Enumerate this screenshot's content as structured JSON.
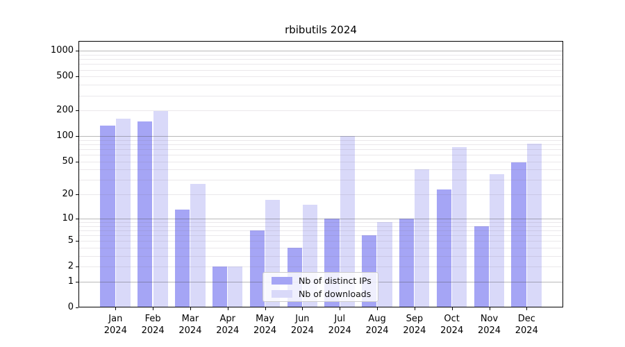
{
  "chart_data": {
    "type": "bar",
    "title": "rbibutils 2024",
    "categories": [
      {
        "month": "Jan",
        "year": "2024"
      },
      {
        "month": "Feb",
        "year": "2024"
      },
      {
        "month": "Mar",
        "year": "2024"
      },
      {
        "month": "Apr",
        "year": "2024"
      },
      {
        "month": "May",
        "year": "2024"
      },
      {
        "month": "Jun",
        "year": "2024"
      },
      {
        "month": "Jul",
        "year": "2024"
      },
      {
        "month": "Aug",
        "year": "2024"
      },
      {
        "month": "Sep",
        "year": "2024"
      },
      {
        "month": "Oct",
        "year": "2024"
      },
      {
        "month": "Nov",
        "year": "2024"
      },
      {
        "month": "Dec",
        "year": "2024"
      }
    ],
    "series": [
      {
        "name": "Nb of distinct IPs",
        "color": "#a5a5f5",
        "values": [
          133,
          150,
          13,
          2,
          7,
          4,
          10,
          6,
          10,
          23,
          8,
          49
        ]
      },
      {
        "name": "Nb of downloads",
        "color": "#d9d9f9",
        "values": [
          160,
          199,
          27,
          2,
          17,
          15,
          100,
          9,
          40,
          74,
          35,
          82
        ]
      }
    ],
    "yscale": "log10(value+1)",
    "ylim": [
      0,
      1300
    ],
    "yticks": [
      1000,
      500,
      200,
      100,
      50,
      20,
      10,
      5,
      2,
      1,
      0
    ],
    "ytick_labels": [
      "1000",
      "500",
      "200",
      "100",
      "50",
      "20",
      "10",
      "5",
      "2",
      "1",
      "0"
    ],
    "grid": {
      "major_at": [
        1,
        10,
        100,
        1000
      ],
      "minor_at": [
        2,
        3,
        4,
        5,
        6,
        7,
        8,
        9,
        20,
        30,
        40,
        50,
        60,
        70,
        80,
        90,
        200,
        300,
        400,
        500,
        600,
        700,
        800,
        900
      ]
    },
    "legend_position": "lower center"
  }
}
